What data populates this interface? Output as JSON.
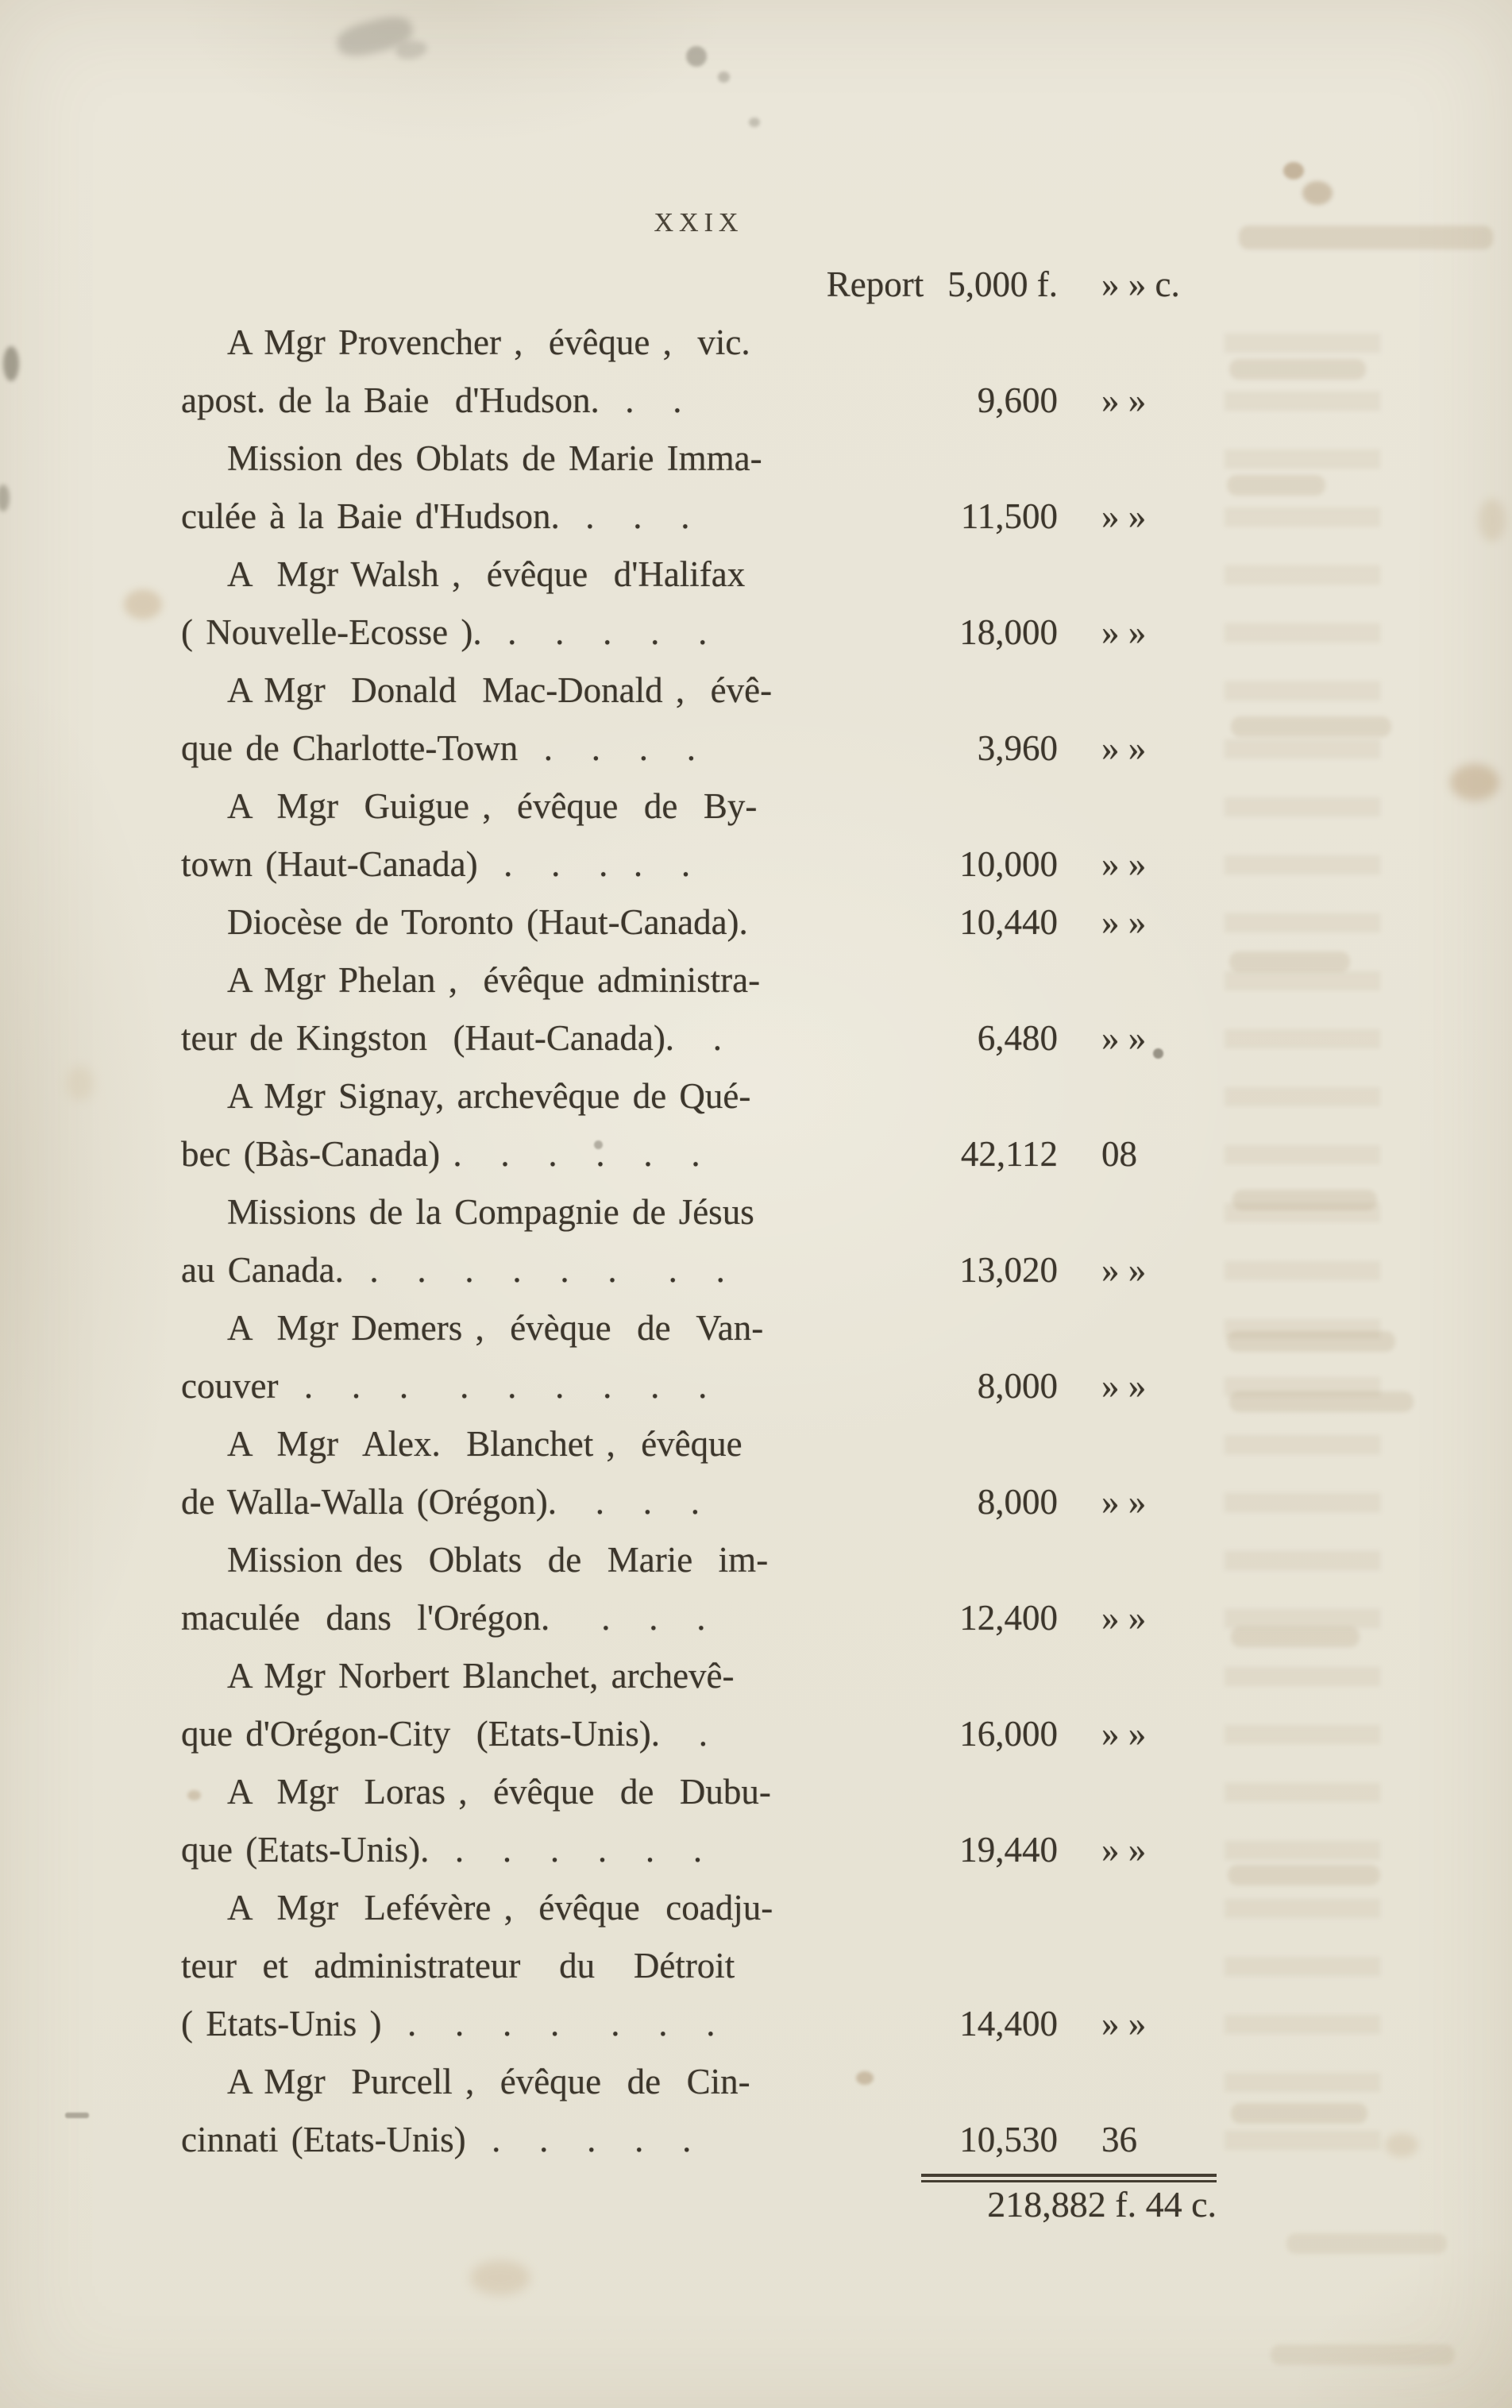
{
  "colors": {
    "paper": "#e8e4d6",
    "ink": "#3c362c"
  },
  "page": {
    "number": "XXIX",
    "report": {
      "label": "Report",
      "amount": "5,000 f.",
      "cents": "» » c."
    },
    "lines": [
      {
        "text": "A Mgr Provencher ,  évêque ,  vic."
      },
      {
        "text": "apost. de la Baie  d'Hudson.  .   .",
        "amount": "9,600",
        "cents": "» »"
      },
      {
        "text": "Mission des Oblats de Marie Imma-"
      },
      {
        "text": "culée à la Baie d'Hudson.  .   .   .",
        "amount": "11,500",
        "cents": "» »"
      },
      {
        "text": "A  Mgr Walsh ,  évêque  d'Halifax"
      },
      {
        "text": "( Nouvelle-Ecosse ).  .   .   .   .   .",
        "amount": "18,000",
        "cents": "» »"
      },
      {
        "text": "A Mgr  Donald  Mac-Donald ,  évê-"
      },
      {
        "text": "que de Charlotte-Town  .   .   .   .",
        "amount": "3,960",
        "cents": "» »"
      },
      {
        "text": "A  Mgr  Guigue ,  évêque  de  By-"
      },
      {
        "text": "town (Haut-Canada)  .   .   .  .   .",
        "amount": "10,000",
        "cents": "» »"
      },
      {
        "text": "Diocèse de Toronto (Haut-Canada).",
        "amount": "10,440",
        "cents": "» »"
      },
      {
        "text": "A Mgr Phelan ,  évêque administra-"
      },
      {
        "text": "teur de Kingston  (Haut-Canada).   .",
        "amount": "6,480",
        "cents": "» »"
      },
      {
        "text": "A Mgr Signay, archevêque de Qué-"
      },
      {
        "text": "bec (Bàs-Canada) .   .   .   .   .   .",
        "amount": "42,112",
        "cents": "08"
      },
      {
        "text": "Missions de la Compagnie de Jésus"
      },
      {
        "text": "au Canada.  .   .   .   .   .   .    .   .",
        "amount": "13,020",
        "cents": "» »"
      },
      {
        "text": "A  Mgr Demers ,  évèque  de  Van-"
      },
      {
        "text": "couver  .   .   .    .   .   .   .   .   .",
        "amount": "8,000",
        "cents": "» »"
      },
      {
        "text": "A  Mgr  Alex.  Blanchet ,  évêque"
      },
      {
        "text": "de Walla-Walla (Orégon).   .   .   .",
        "amount": "8,000",
        "cents": "» »"
      },
      {
        "text": "Mission des  Oblats  de  Marie  im-"
      },
      {
        "text": "maculée  dans  l'Orégon.    .   .   .",
        "amount": "12,400",
        "cents": "» »"
      },
      {
        "text": "A Mgr Norbert Blanchet, archevê-"
      },
      {
        "text": "que d'Orégon-City  (Etats-Unis).   .",
        "amount": "16,000",
        "cents": "» »"
      },
      {
        "text": "A  Mgr  Loras ,  évêque  de  Dubu-"
      },
      {
        "text": "que (Etats-Unis).  .   .   .   .   .   .",
        "amount": "19,440",
        "cents": "» »"
      },
      {
        "text": "A  Mgr  Lefévère ,  évêque  coadju-"
      },
      {
        "text": "teur  et  administrateur   du   Détroit"
      },
      {
        "text": "( Etats-Unis )  .   .   .   .    .   .   .",
        "amount": "14,400",
        "cents": "» »"
      },
      {
        "text": "A Mgr  Purcell ,  évêque  de  Cin-"
      },
      {
        "text": "cinnati (Etats-Unis)  .   .   .   .   .",
        "amount": "10,530",
        "cents": "36"
      }
    ],
    "total": "218,882 f. 44 c."
  }
}
